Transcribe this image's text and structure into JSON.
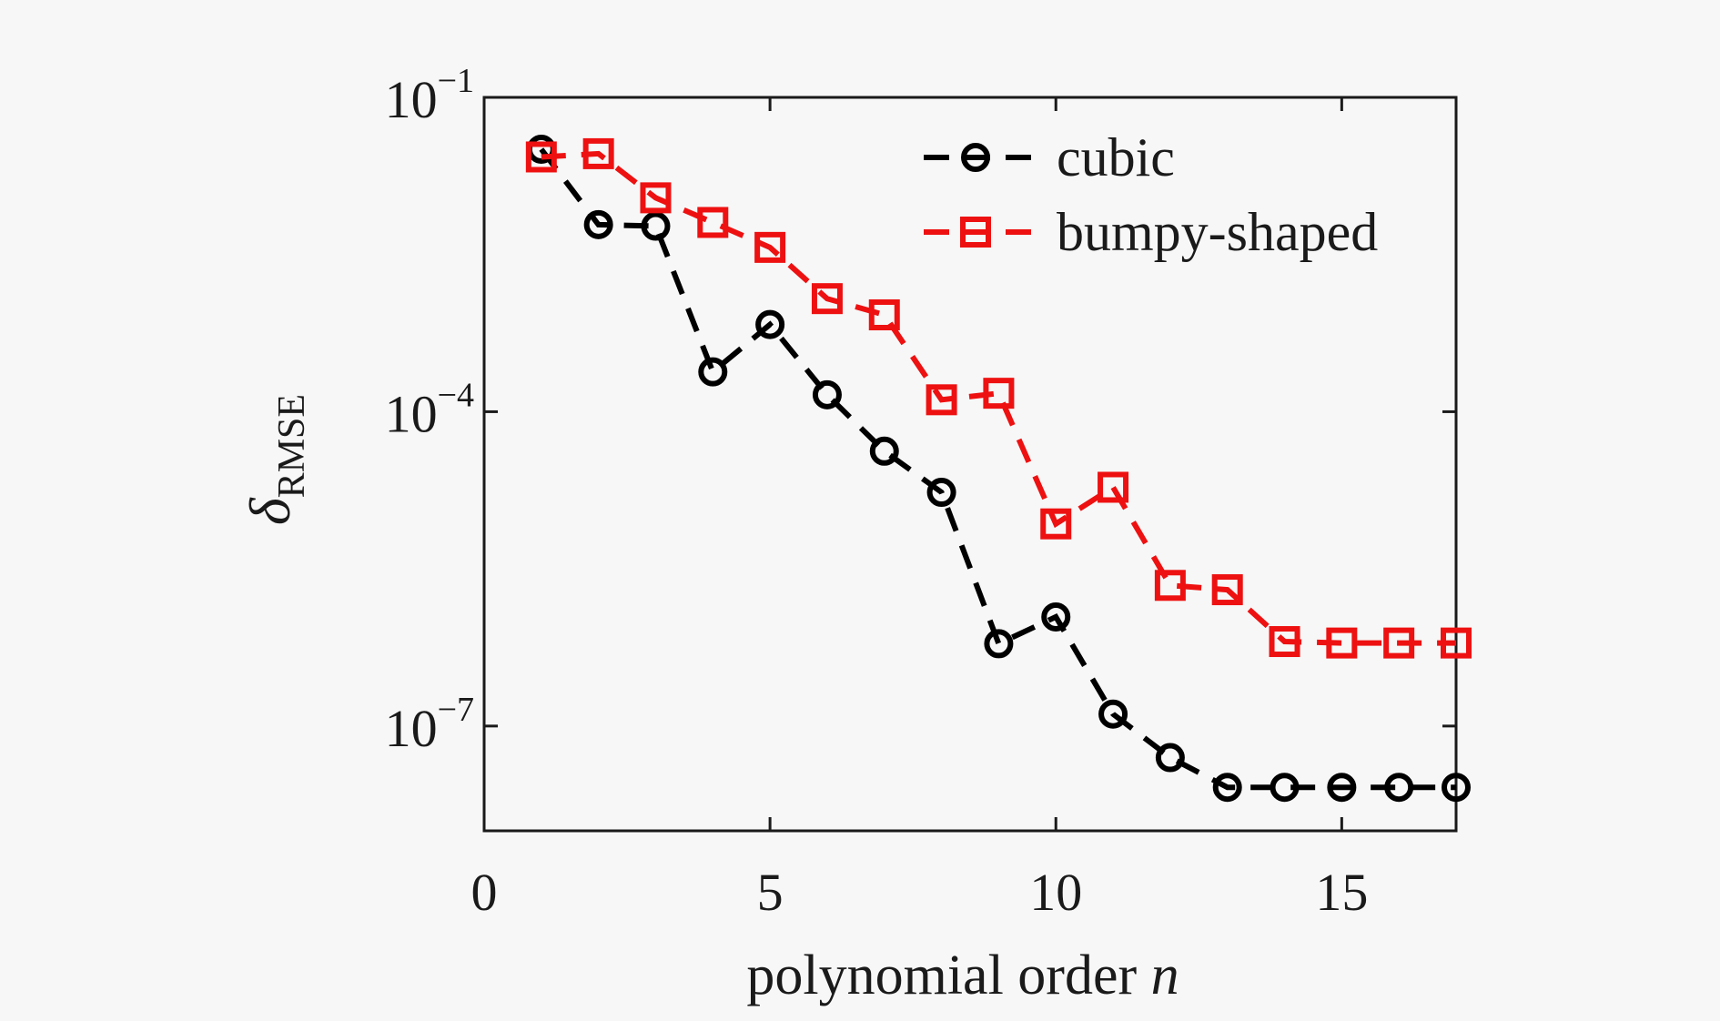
{
  "figure": {
    "background": "#f7f7f7",
    "axis_color": "#1a1a1a",
    "text_color": "#1a1a1a"
  },
  "chart_data": {
    "type": "line",
    "title": "",
    "xlabel_prefix": "polynomial order ",
    "xlabel_variable": "n",
    "ylabel_symbol": "δ",
    "ylabel_subscript": "RMSE",
    "xlim": [
      0,
      17
    ],
    "x_ticks": [
      0,
      5,
      10,
      15
    ],
    "x_tick_labels": [
      "0",
      "5",
      "10",
      "15"
    ],
    "y_scale": "log",
    "ylim_exp": [
      -8,
      -1
    ],
    "y_ticks": [
      {
        "base": "10",
        "exponent": "−1",
        "exp_value": -1
      },
      {
        "base": "10",
        "exponent": "−4",
        "exp_value": -4
      },
      {
        "base": "10",
        "exponent": "−7",
        "exp_value": -7
      }
    ],
    "grid": false,
    "legend": {
      "border": false,
      "position": "top-right"
    },
    "x": [
      1,
      2,
      3,
      4,
      5,
      6,
      7,
      8,
      9,
      10,
      11,
      12,
      13,
      14,
      15,
      16,
      17
    ],
    "series": [
      {
        "name": "cubic",
        "color": "#000000",
        "marker": "circle",
        "line_style": "dashed",
        "values": [
          0.032,
          0.0061,
          0.0059,
          0.00024,
          0.00068,
          0.000145,
          4.2e-05,
          1.7e-05,
          6.1e-07,
          1.1e-06,
          1.3e-07,
          5e-08,
          2.6e-08,
          2.6e-08,
          2.6e-08,
          2.6e-08,
          2.6e-08
        ]
      },
      {
        "name": "bumpy-shaped",
        "color": "#ee1111",
        "marker": "square",
        "line_style": "dashed",
        "values": [
          0.027,
          0.029,
          0.011,
          0.0064,
          0.0037,
          0.0012,
          0.00084,
          0.00013,
          0.00015,
          8.5e-06,
          1.9e-05,
          2.2e-06,
          2e-06,
          6.4e-07,
          6.2e-07,
          6.2e-07,
          6.2e-07
        ]
      }
    ]
  }
}
